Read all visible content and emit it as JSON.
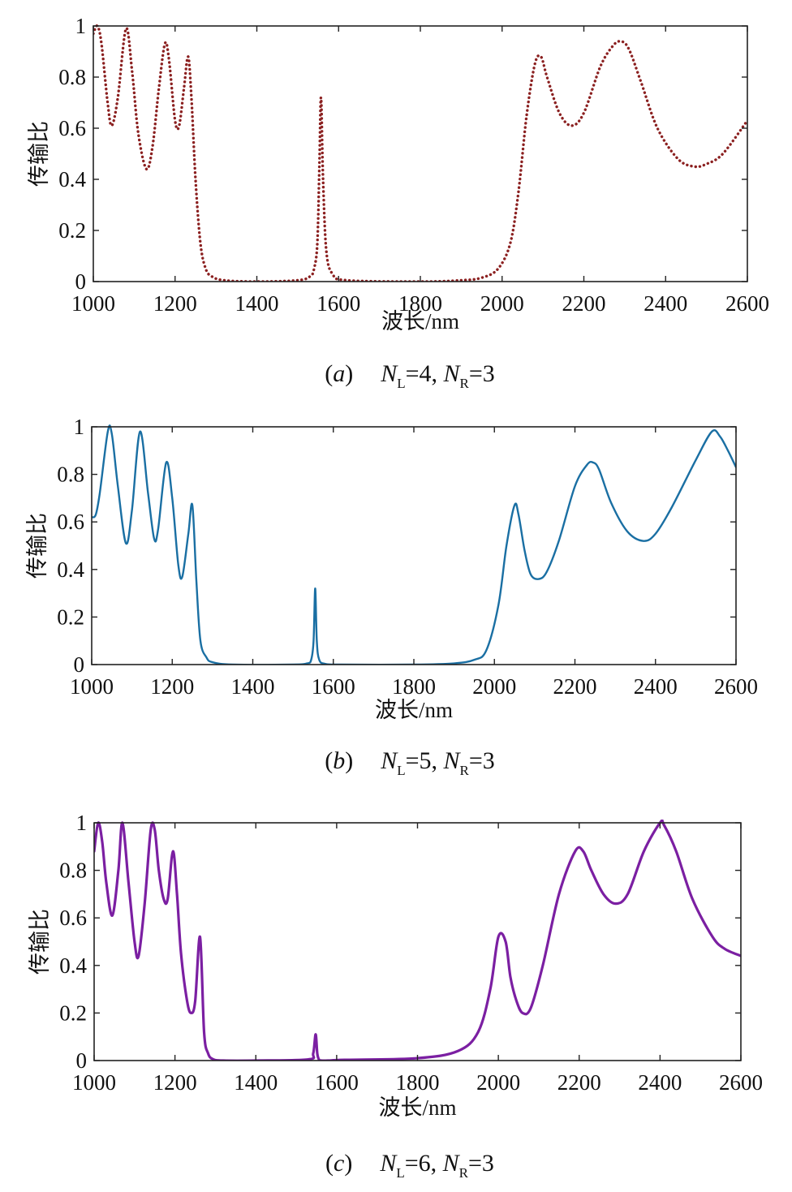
{
  "chart_data": [
    {
      "type": "line",
      "caption": {
        "letter": "a",
        "expr": [
          "N",
          "L",
          "=4, ",
          "N",
          "R",
          "=3"
        ]
      },
      "xlabel": "波长/nm",
      "ylabel": "传输比",
      "xlim": [
        1000,
        2600
      ],
      "ylim": [
        0,
        1
      ],
      "xticks": [
        "1000",
        "1200",
        "1400",
        "1600",
        "1800",
        "2000",
        "2200",
        "2400",
        "2600"
      ],
      "yticks": [
        "0",
        "0.2",
        "0.4",
        "0.6",
        "0.8",
        "1"
      ],
      "line_style": "dotted",
      "color": "#8b2020",
      "series": [
        {
          "x": [
            1000,
            1010,
            1020,
            1035,
            1045,
            1060,
            1080,
            1095,
            1110,
            1130,
            1145,
            1160,
            1175,
            1185,
            1200,
            1210,
            1222,
            1232,
            1240,
            1250,
            1262,
            1275,
            1290,
            1320,
            1400,
            1500,
            1530,
            1540,
            1548,
            1553,
            1557,
            1562,
            1570,
            1585,
            1620,
            1800,
            1900,
            1950,
            1990,
            2020,
            2040,
            2060,
            2080,
            2095,
            2110,
            2140,
            2170,
            2200,
            2240,
            2270,
            2290,
            2310,
            2340,
            2380,
            2430,
            2470,
            2500,
            2540,
            2600
          ],
          "y": [
            0.97,
            1.0,
            0.93,
            0.7,
            0.61,
            0.72,
            0.99,
            0.82,
            0.58,
            0.44,
            0.53,
            0.75,
            0.93,
            0.87,
            0.63,
            0.61,
            0.76,
            0.88,
            0.72,
            0.4,
            0.15,
            0.05,
            0.02,
            0.005,
            0.0,
            0.005,
            0.02,
            0.05,
            0.15,
            0.45,
            0.72,
            0.4,
            0.12,
            0.03,
            0.005,
            0.0,
            0.005,
            0.015,
            0.05,
            0.15,
            0.35,
            0.65,
            0.85,
            0.88,
            0.8,
            0.66,
            0.61,
            0.66,
            0.84,
            0.92,
            0.94,
            0.91,
            0.78,
            0.6,
            0.48,
            0.45,
            0.46,
            0.5,
            0.63
          ]
        }
      ]
    },
    {
      "type": "line",
      "caption": {
        "letter": "b",
        "expr": [
          "N",
          "L",
          "=5, ",
          "N",
          "R",
          "=3"
        ]
      },
      "xlabel": "波长/nm",
      "ylabel": "传输比",
      "xlim": [
        1000,
        2600
      ],
      "ylim": [
        0,
        1
      ],
      "xticks": [
        "1000",
        "1200",
        "1400",
        "1600",
        "1800",
        "2000",
        "2200",
        "2400",
        "2600"
      ],
      "yticks": [
        "0",
        "0.2",
        "0.4",
        "0.6",
        "0.8",
        "1"
      ],
      "line_style": "solid",
      "color": "#1a6fa3",
      "series": [
        {
          "x": [
            1000,
            1010,
            1020,
            1040,
            1050,
            1065,
            1085,
            1100,
            1120,
            1140,
            1155,
            1165,
            1185,
            1200,
            1215,
            1225,
            1240,
            1250,
            1260,
            1270,
            1285,
            1300,
            1350,
            1500,
            1535,
            1545,
            1551,
            1555,
            1559,
            1565,
            1580,
            1620,
            1800,
            1900,
            1950,
            1980,
            2010,
            2030,
            2050,
            2060,
            2075,
            2090,
            2110,
            2130,
            2160,
            2200,
            2230,
            2245,
            2260,
            2290,
            2330,
            2370,
            2400,
            2440,
            2500,
            2540,
            2560,
            2580,
            2600
          ],
          "y": [
            0.62,
            0.63,
            0.72,
            0.98,
            0.97,
            0.75,
            0.51,
            0.65,
            0.98,
            0.72,
            0.53,
            0.57,
            0.85,
            0.7,
            0.42,
            0.37,
            0.55,
            0.67,
            0.35,
            0.1,
            0.03,
            0.01,
            0.0,
            0.0,
            0.005,
            0.02,
            0.1,
            0.32,
            0.1,
            0.02,
            0.003,
            0.0,
            0.0,
            0.005,
            0.02,
            0.06,
            0.25,
            0.5,
            0.67,
            0.63,
            0.48,
            0.38,
            0.36,
            0.39,
            0.52,
            0.75,
            0.84,
            0.85,
            0.82,
            0.68,
            0.56,
            0.52,
            0.55,
            0.66,
            0.86,
            0.98,
            0.96,
            0.9,
            0.83
          ]
        }
      ]
    },
    {
      "type": "line",
      "caption": {
        "letter": "c",
        "expr": [
          "N",
          "L",
          "=6, ",
          "N",
          "R",
          "=3"
        ]
      },
      "xlabel": "波长/nm",
      "ylabel": "传输比",
      "xlim": [
        1000,
        2600
      ],
      "ylim": [
        0,
        1
      ],
      "xticks": [
        "1000",
        "1200",
        "1400",
        "1600",
        "1800",
        "2000",
        "2200",
        "2400",
        "2600"
      ],
      "yticks": [
        "0",
        "0.2",
        "0.4",
        "0.6",
        "0.8",
        "1"
      ],
      "line_style": "solid",
      "color": "#7b1fa2",
      "series": [
        {
          "x": [
            1000,
            1010,
            1020,
            1030,
            1045,
            1060,
            1070,
            1085,
            1100,
            1110,
            1125,
            1140,
            1150,
            1160,
            1172,
            1182,
            1195,
            1205,
            1215,
            1230,
            1240,
            1250,
            1262,
            1272,
            1282,
            1295,
            1320,
            1400,
            1530,
            1542,
            1548,
            1552,
            1556,
            1562,
            1580,
            1620,
            1800,
            1900,
            1950,
            1980,
            2000,
            2018,
            2030,
            2045,
            2060,
            2080,
            2110,
            2150,
            2190,
            2210,
            2230,
            2260,
            2290,
            2320,
            2360,
            2400,
            2410,
            2440,
            2480,
            2530,
            2560,
            2600
          ],
          "y": [
            0.88,
            1.0,
            0.92,
            0.75,
            0.61,
            0.8,
            1.0,
            0.75,
            0.5,
            0.44,
            0.66,
            0.97,
            0.97,
            0.8,
            0.68,
            0.68,
            0.88,
            0.7,
            0.45,
            0.25,
            0.2,
            0.25,
            0.52,
            0.12,
            0.03,
            0.005,
            0.0,
            0.0,
            0.005,
            0.03,
            0.11,
            0.03,
            0.005,
            0.0,
            0.0,
            0.003,
            0.01,
            0.04,
            0.12,
            0.3,
            0.52,
            0.5,
            0.35,
            0.25,
            0.2,
            0.22,
            0.4,
            0.7,
            0.88,
            0.88,
            0.8,
            0.7,
            0.66,
            0.7,
            0.88,
            1.0,
            0.99,
            0.88,
            0.68,
            0.52,
            0.47,
            0.44
          ]
        }
      ]
    }
  ]
}
